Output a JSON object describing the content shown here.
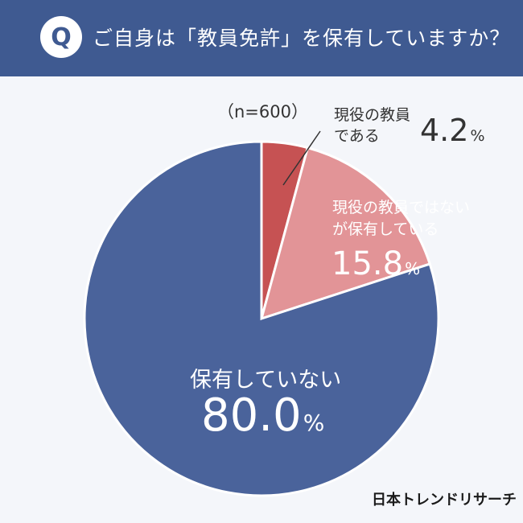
{
  "header": {
    "badge": "Q",
    "question": "ご自身は「教員免許」を保有していますか？"
  },
  "colors": {
    "header_bg": "#3f5a91",
    "active_teacher": "#c65253",
    "has_license": "#e29497",
    "no_license": "#4a639b"
  },
  "chart_data": {
    "type": "pie",
    "sample_size": "（n=600）",
    "slices": [
      {
        "label_line1": "現役の教員",
        "label_line2": "である",
        "value": 4.2,
        "pct_text": "4.2",
        "unit": "%",
        "color": "#c65253"
      },
      {
        "label_line1": "現役の教員ではない",
        "label_line2": "が保有している",
        "value": 15.8,
        "pct_text": "15.8",
        "unit": "%",
        "color": "#e29497"
      },
      {
        "label_line1": "保有していない",
        "label_line2": "",
        "value": 80.0,
        "pct_text": "80.0",
        "unit": "%",
        "color": "#4a639b"
      }
    ]
  },
  "brand": "日本トレンドリサーチ"
}
